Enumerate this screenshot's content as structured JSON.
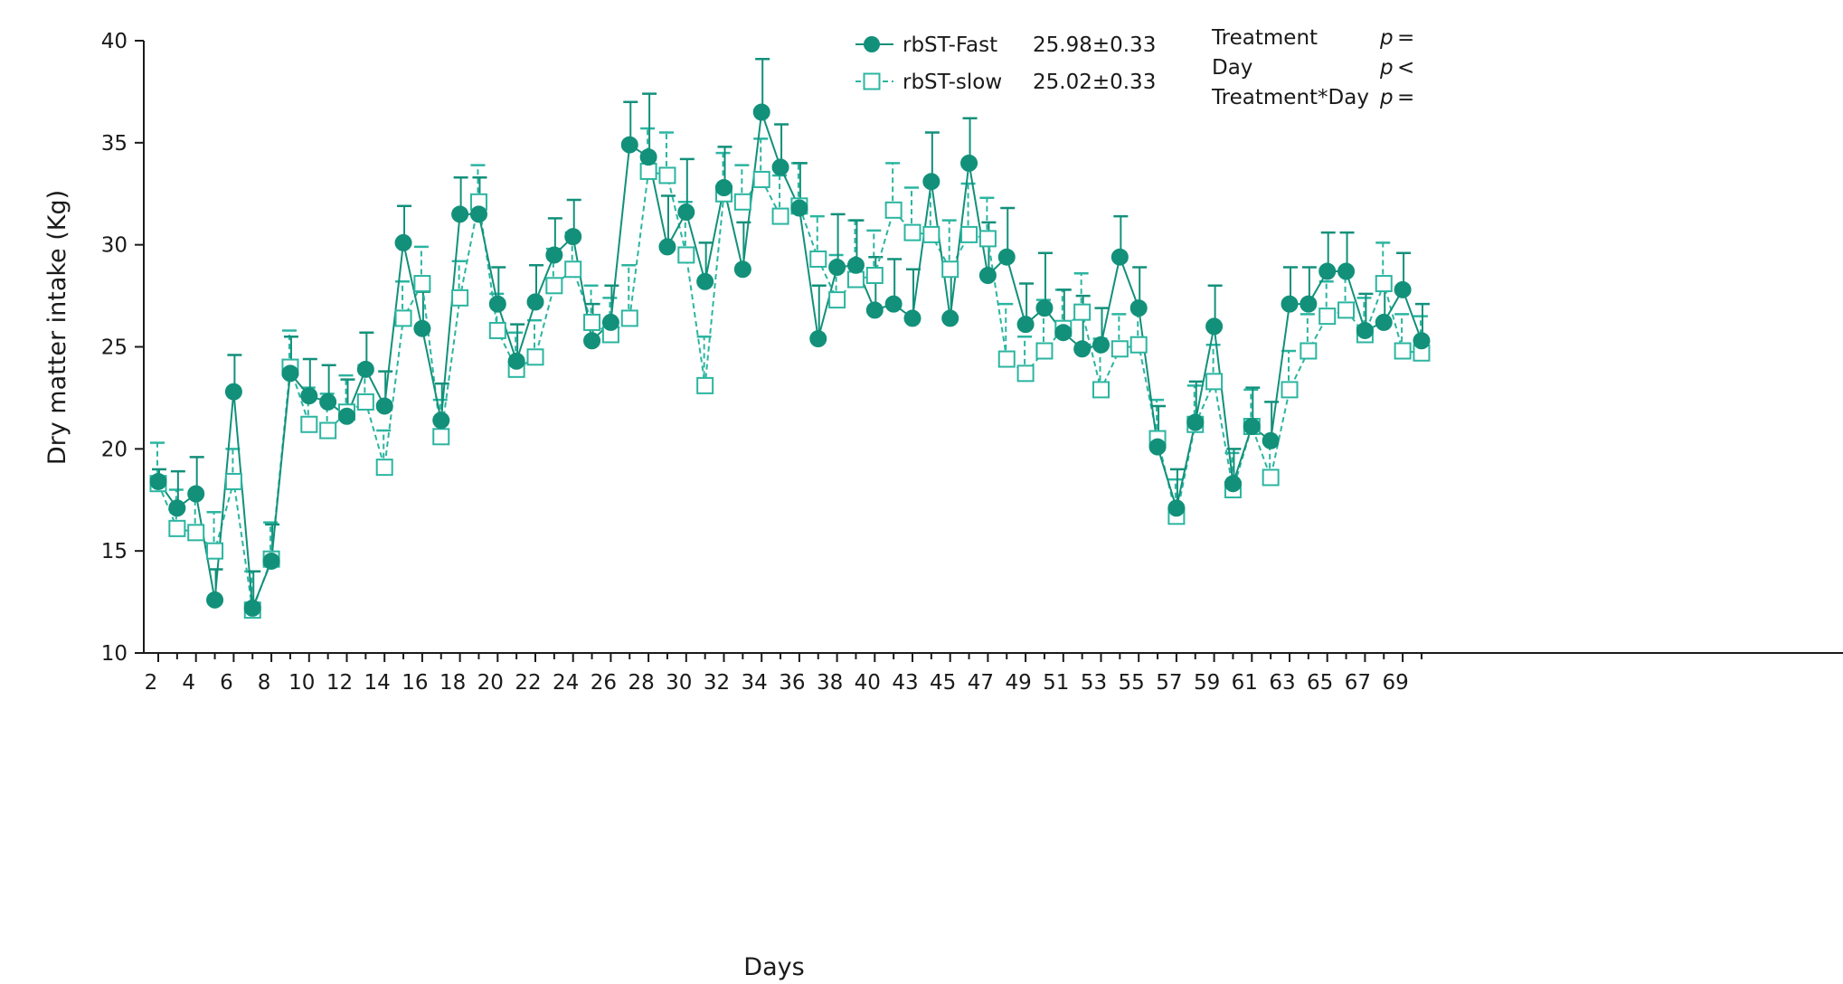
{
  "chart_data": {
    "type": "line",
    "xlabel": "Days",
    "ylabel": "Dry matter intake (Kg)",
    "ylim": [
      10,
      40
    ],
    "yticks": [
      10,
      15,
      20,
      25,
      30,
      35,
      40
    ],
    "x_tick_labels": [
      "2",
      "4",
      "6",
      "8",
      "10",
      "12",
      "14",
      "16",
      "18",
      "20",
      "22",
      "24",
      "26",
      "28",
      "30",
      "32",
      "34",
      "36",
      "38",
      "40",
      "43",
      "45",
      "47",
      "49",
      "51",
      "53",
      "55",
      "57",
      "59",
      "61",
      "63",
      "65",
      "67",
      "69"
    ],
    "x": [
      2,
      3,
      4,
      5,
      6,
      7,
      8,
      9,
      10,
      11,
      12,
      13,
      14,
      15,
      16,
      17,
      18,
      19,
      20,
      21,
      22,
      23,
      24,
      25,
      26,
      27,
      28,
      29,
      30,
      31,
      32,
      33,
      34,
      35,
      36,
      37,
      38,
      39,
      40,
      42,
      43,
      44,
      45,
      46,
      47,
      48,
      49,
      50,
      51,
      52,
      53,
      54,
      55,
      56,
      57,
      58,
      59,
      60,
      61,
      62,
      63,
      64,
      65,
      66,
      67,
      68,
      69,
      70
    ],
    "series": [
      {
        "name": "rbST-Fast",
        "mean_label": "25.98±0.33",
        "color": "#12907a",
        "marker": "filled-circle",
        "line_style": "solid",
        "values": [
          18.4,
          17.1,
          17.8,
          12.6,
          22.8,
          12.2,
          14.5,
          23.7,
          22.6,
          22.3,
          21.6,
          23.9,
          22.1,
          30.1,
          25.9,
          21.4,
          31.5,
          31.5,
          27.1,
          24.3,
          27.2,
          29.5,
          30.4,
          25.3,
          26.2,
          34.9,
          34.3,
          29.9,
          31.6,
          28.2,
          32.8,
          28.8,
          36.5,
          33.8,
          31.8,
          25.4,
          28.9,
          29.0,
          26.8,
          27.1,
          26.4,
          33.1,
          26.4,
          34.0,
          28.5,
          29.4,
          26.1,
          26.9,
          25.7,
          24.9,
          25.1,
          29.4,
          26.9,
          20.1,
          17.1,
          21.3,
          26.0,
          18.3,
          21.1,
          20.4,
          27.1,
          27.1,
          28.7,
          28.7,
          25.8,
          26.2,
          27.8,
          25.3
        ],
        "errors": [
          0.6,
          1.8,
          1.8,
          1.5,
          1.8,
          1.8,
          1.8,
          1.8,
          1.8,
          1.8,
          1.8,
          1.8,
          1.7,
          1.8,
          1.8,
          1.8,
          1.8,
          1.8,
          1.8,
          1.8,
          1.8,
          1.8,
          1.8,
          1.8,
          1.8,
          2.1,
          3.1,
          2.5,
          2.6,
          1.9,
          2.0,
          2.3,
          2.6,
          2.1,
          2.2,
          2.6,
          2.6,
          2.2,
          2.6,
          2.2,
          2.4,
          2.4,
          2.6,
          2.2,
          2.6,
          2.4,
          2.0,
          2.7,
          2.1,
          2.6,
          1.8,
          2.0,
          2.0,
          2.0,
          1.9,
          2.0,
          2.0,
          1.7,
          1.9,
          1.9,
          1.8,
          1.8,
          1.9,
          1.9,
          1.8,
          1.7,
          1.8,
          1.8
        ]
      },
      {
        "name": "rbST-slow",
        "mean_label": "25.02±0.33",
        "color": "#2bb5a0",
        "marker": "open-square",
        "line_style": "dashed",
        "values": [
          18.3,
          16.1,
          15.9,
          15.0,
          18.4,
          12.1,
          14.6,
          24.0,
          21.2,
          20.9,
          21.8,
          22.3,
          19.1,
          26.4,
          28.1,
          20.6,
          27.4,
          32.1,
          25.8,
          23.9,
          24.5,
          28.0,
          28.8,
          26.2,
          25.6,
          26.4,
          33.6,
          33.4,
          29.5,
          23.1,
          32.5,
          32.1,
          33.2,
          31.4,
          31.9,
          29.3,
          27.3,
          28.3,
          28.5,
          31.7,
          30.6,
          30.5,
          28.8,
          30.5,
          30.3,
          24.4,
          23.7,
          24.8,
          25.9,
          26.7,
          22.9,
          24.9,
          25.1,
          20.5,
          16.7,
          21.2,
          23.3,
          18.0,
          21.1,
          18.6,
          22.9,
          24.8,
          26.5,
          26.8,
          25.6,
          28.1,
          24.8,
          24.7
        ],
        "errors": [
          2.0,
          1.9,
          1.8,
          1.9,
          1.6,
          1.9,
          1.8,
          1.8,
          1.8,
          1.8,
          1.8,
          1.8,
          1.8,
          1.8,
          1.8,
          1.8,
          1.8,
          1.8,
          1.8,
          1.8,
          1.8,
          1.8,
          1.8,
          1.8,
          1.8,
          2.6,
          2.1,
          2.1,
          2.6,
          2.4,
          2.0,
          1.8,
          2.0,
          2.0,
          2.1,
          2.1,
          2.2,
          2.9,
          2.2,
          2.3,
          2.2,
          2.7,
          2.4,
          2.5,
          2.0,
          2.7,
          1.8,
          2.5,
          1.9,
          1.9,
          2.5,
          1.7,
          1.8,
          1.9,
          1.8,
          1.9,
          1.8,
          1.8,
          1.8,
          1.7,
          1.9,
          1.8,
          1.7,
          1.8,
          1.8,
          2.0,
          1.8,
          1.8
        ]
      }
    ],
    "stats": [
      {
        "label": "Treatment",
        "p": "p",
        "op": "="
      },
      {
        "label": "Day",
        "p": "p",
        "op": "<"
      },
      {
        "label": "Treatment*Day",
        "p": "p",
        "op": "="
      }
    ],
    "legend_placement": "top-right",
    "grid": false
  }
}
